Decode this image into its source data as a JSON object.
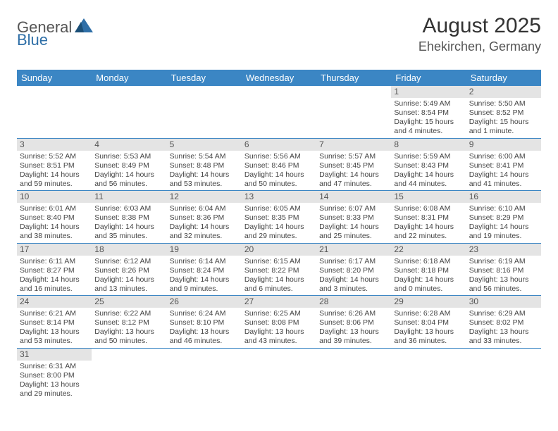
{
  "logo": {
    "text1": "General",
    "text2": "Blue"
  },
  "title": "August 2025",
  "location": "Ehekirchen, Germany",
  "colors": {
    "header_bg": "#3b86c4",
    "header_text": "#ffffff",
    "daynum_bg": "#e4e4e4",
    "cell_border": "#3b86c4",
    "logo_accent": "#2f6fa7"
  },
  "day_headers": [
    "Sunday",
    "Monday",
    "Tuesday",
    "Wednesday",
    "Thursday",
    "Friday",
    "Saturday"
  ],
  "weeks": [
    [
      null,
      null,
      null,
      null,
      null,
      {
        "n": "1",
        "sunrise": "5:49 AM",
        "sunset": "8:54 PM",
        "daylight": "15 hours and 4 minutes."
      },
      {
        "n": "2",
        "sunrise": "5:50 AM",
        "sunset": "8:52 PM",
        "daylight": "15 hours and 1 minute."
      }
    ],
    [
      {
        "n": "3",
        "sunrise": "5:52 AM",
        "sunset": "8:51 PM",
        "daylight": "14 hours and 59 minutes."
      },
      {
        "n": "4",
        "sunrise": "5:53 AM",
        "sunset": "8:49 PM",
        "daylight": "14 hours and 56 minutes."
      },
      {
        "n": "5",
        "sunrise": "5:54 AM",
        "sunset": "8:48 PM",
        "daylight": "14 hours and 53 minutes."
      },
      {
        "n": "6",
        "sunrise": "5:56 AM",
        "sunset": "8:46 PM",
        "daylight": "14 hours and 50 minutes."
      },
      {
        "n": "7",
        "sunrise": "5:57 AM",
        "sunset": "8:45 PM",
        "daylight": "14 hours and 47 minutes."
      },
      {
        "n": "8",
        "sunrise": "5:59 AM",
        "sunset": "8:43 PM",
        "daylight": "14 hours and 44 minutes."
      },
      {
        "n": "9",
        "sunrise": "6:00 AM",
        "sunset": "8:41 PM",
        "daylight": "14 hours and 41 minutes."
      }
    ],
    [
      {
        "n": "10",
        "sunrise": "6:01 AM",
        "sunset": "8:40 PM",
        "daylight": "14 hours and 38 minutes."
      },
      {
        "n": "11",
        "sunrise": "6:03 AM",
        "sunset": "8:38 PM",
        "daylight": "14 hours and 35 minutes."
      },
      {
        "n": "12",
        "sunrise": "6:04 AM",
        "sunset": "8:36 PM",
        "daylight": "14 hours and 32 minutes."
      },
      {
        "n": "13",
        "sunrise": "6:05 AM",
        "sunset": "8:35 PM",
        "daylight": "14 hours and 29 minutes."
      },
      {
        "n": "14",
        "sunrise": "6:07 AM",
        "sunset": "8:33 PM",
        "daylight": "14 hours and 25 minutes."
      },
      {
        "n": "15",
        "sunrise": "6:08 AM",
        "sunset": "8:31 PM",
        "daylight": "14 hours and 22 minutes."
      },
      {
        "n": "16",
        "sunrise": "6:10 AM",
        "sunset": "8:29 PM",
        "daylight": "14 hours and 19 minutes."
      }
    ],
    [
      {
        "n": "17",
        "sunrise": "6:11 AM",
        "sunset": "8:27 PM",
        "daylight": "14 hours and 16 minutes."
      },
      {
        "n": "18",
        "sunrise": "6:12 AM",
        "sunset": "8:26 PM",
        "daylight": "14 hours and 13 minutes."
      },
      {
        "n": "19",
        "sunrise": "6:14 AM",
        "sunset": "8:24 PM",
        "daylight": "14 hours and 9 minutes."
      },
      {
        "n": "20",
        "sunrise": "6:15 AM",
        "sunset": "8:22 PM",
        "daylight": "14 hours and 6 minutes."
      },
      {
        "n": "21",
        "sunrise": "6:17 AM",
        "sunset": "8:20 PM",
        "daylight": "14 hours and 3 minutes."
      },
      {
        "n": "22",
        "sunrise": "6:18 AM",
        "sunset": "8:18 PM",
        "daylight": "14 hours and 0 minutes."
      },
      {
        "n": "23",
        "sunrise": "6:19 AM",
        "sunset": "8:16 PM",
        "daylight": "13 hours and 56 minutes."
      }
    ],
    [
      {
        "n": "24",
        "sunrise": "6:21 AM",
        "sunset": "8:14 PM",
        "daylight": "13 hours and 53 minutes."
      },
      {
        "n": "25",
        "sunrise": "6:22 AM",
        "sunset": "8:12 PM",
        "daylight": "13 hours and 50 minutes."
      },
      {
        "n": "26",
        "sunrise": "6:24 AM",
        "sunset": "8:10 PM",
        "daylight": "13 hours and 46 minutes."
      },
      {
        "n": "27",
        "sunrise": "6:25 AM",
        "sunset": "8:08 PM",
        "daylight": "13 hours and 43 minutes."
      },
      {
        "n": "28",
        "sunrise": "6:26 AM",
        "sunset": "8:06 PM",
        "daylight": "13 hours and 39 minutes."
      },
      {
        "n": "29",
        "sunrise": "6:28 AM",
        "sunset": "8:04 PM",
        "daylight": "13 hours and 36 minutes."
      },
      {
        "n": "30",
        "sunrise": "6:29 AM",
        "sunset": "8:02 PM",
        "daylight": "13 hours and 33 minutes."
      }
    ],
    [
      {
        "n": "31",
        "sunrise": "6:31 AM",
        "sunset": "8:00 PM",
        "daylight": "13 hours and 29 minutes."
      },
      null,
      null,
      null,
      null,
      null,
      null
    ]
  ],
  "labels": {
    "sunrise_prefix": "Sunrise: ",
    "sunset_prefix": "Sunset: ",
    "daylight_prefix": "Daylight: "
  }
}
